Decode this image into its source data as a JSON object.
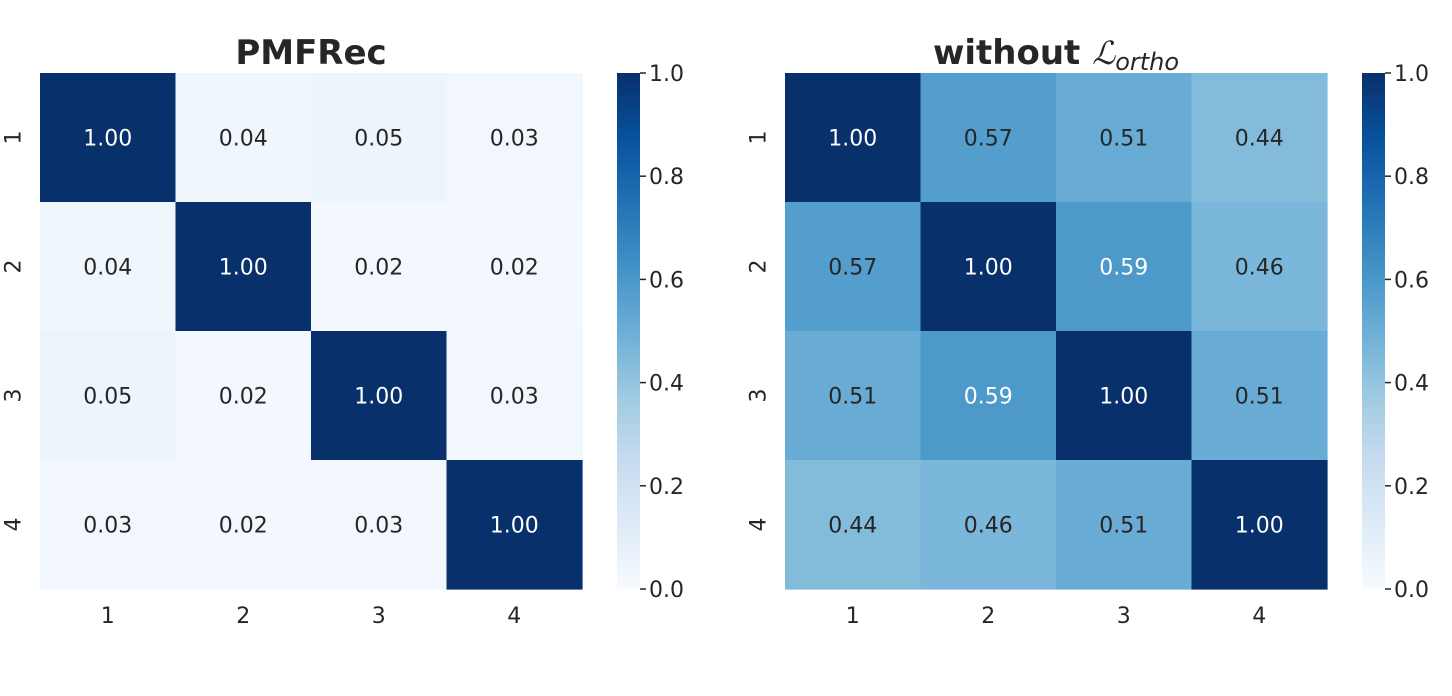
{
  "chart_data": [
    {
      "type": "heatmap",
      "title": "PMFRec",
      "title_math": "",
      "x_tick_labels": [
        "1",
        "2",
        "3",
        "4"
      ],
      "y_tick_labels": [
        "1",
        "2",
        "3",
        "4"
      ],
      "values": [
        [
          1.0,
          0.04,
          0.05,
          0.03
        ],
        [
          0.04,
          1.0,
          0.02,
          0.02
        ],
        [
          0.05,
          0.02,
          1.0,
          0.03
        ],
        [
          0.03,
          0.02,
          0.03,
          1.0
        ]
      ],
      "cell_labels": [
        [
          "1.00",
          "0.04",
          "0.05",
          "0.03"
        ],
        [
          "0.04",
          "1.00",
          "0.02",
          "0.02"
        ],
        [
          "0.05",
          "0.02",
          "1.00",
          "0.03"
        ],
        [
          "0.03",
          "0.02",
          "0.03",
          "1.00"
        ]
      ],
      "colormap": "Blues",
      "vmin": 0.0,
      "vmax": 1.0,
      "colorbar_ticks": [
        "0.0",
        "0.2",
        "0.4",
        "0.6",
        "0.8",
        "1.0"
      ]
    },
    {
      "type": "heatmap",
      "title": "without ",
      "title_math": "ℒ",
      "title_math_sub": "ortho",
      "x_tick_labels": [
        "1",
        "2",
        "3",
        "4"
      ],
      "y_tick_labels": [
        "1",
        "2",
        "3",
        "4"
      ],
      "values": [
        [
          1.0,
          0.57,
          0.51,
          0.44
        ],
        [
          0.57,
          1.0,
          0.59,
          0.46
        ],
        [
          0.51,
          0.59,
          1.0,
          0.51
        ],
        [
          0.44,
          0.46,
          0.51,
          1.0
        ]
      ],
      "cell_labels": [
        [
          "1.00",
          "0.57",
          "0.51",
          "0.44"
        ],
        [
          "0.57",
          "1.00",
          "0.59",
          "0.46"
        ],
        [
          "0.51",
          "0.59",
          "1.00",
          "0.51"
        ],
        [
          "0.44",
          "0.46",
          "0.51",
          "1.00"
        ]
      ],
      "colormap": "Blues",
      "vmin": 0.0,
      "vmax": 1.0,
      "colorbar_ticks": [
        "0.0",
        "0.2",
        "0.4",
        "0.6",
        "0.8",
        "1.0"
      ]
    }
  ],
  "colors": {
    "cmap_low": "#f7fbff",
    "cmap_high": "#08306b",
    "text_dark": "#262626",
    "text_light": "#ffffff"
  }
}
